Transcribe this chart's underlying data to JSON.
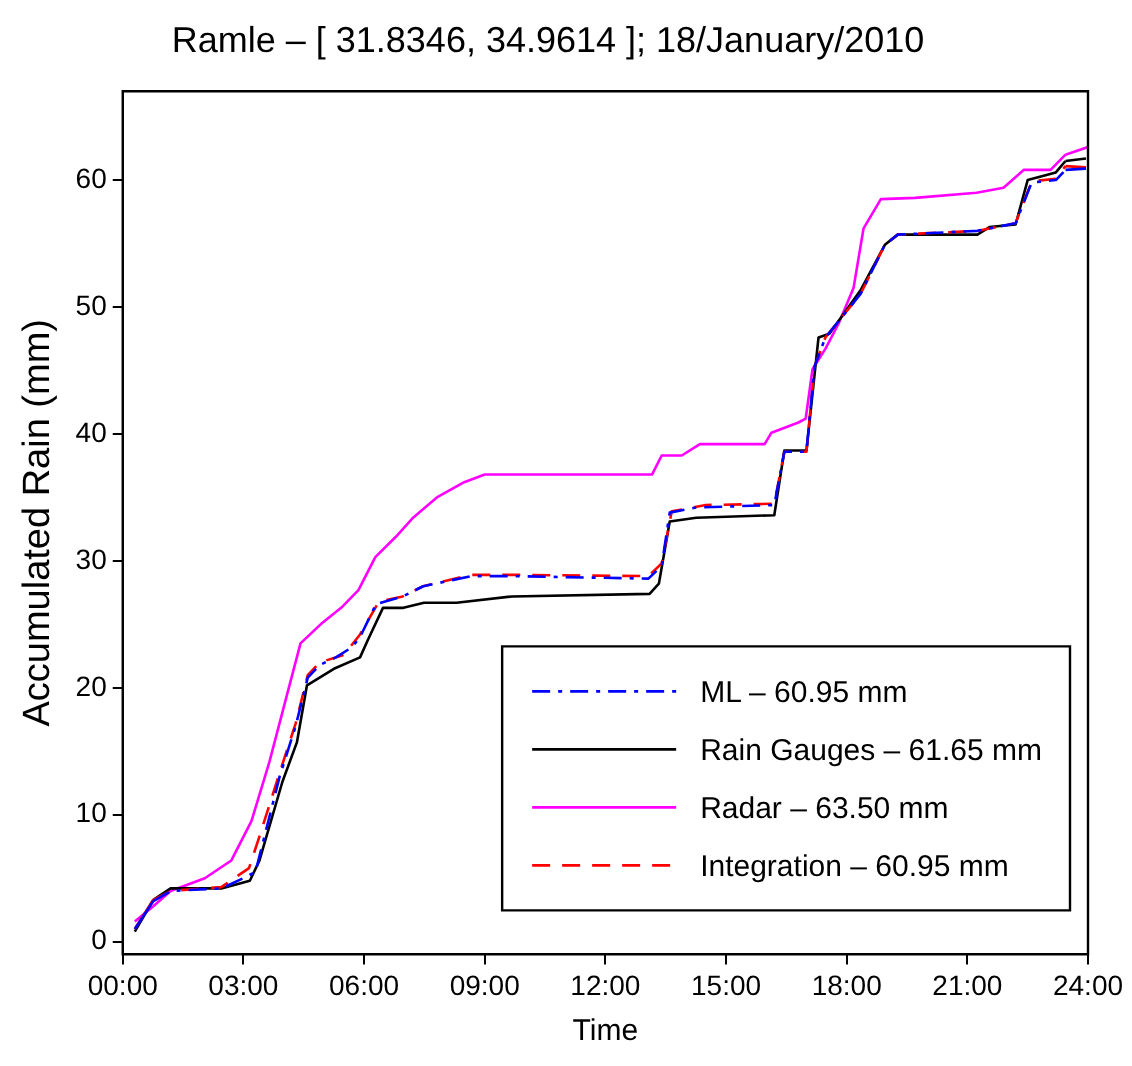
{
  "chart_data": {
    "type": "line",
    "title": "Ramle – [ 31.8346, 34.9614 ]; 18/January/2010",
    "xlabel": "Time",
    "ylabel": "Accumulated Rain (mm)",
    "xlim": [
      0,
      24
    ],
    "xticks": [
      {
        "value": 0,
        "label": "00:00"
      },
      {
        "value": 3,
        "label": "03:00"
      },
      {
        "value": 6,
        "label": "06:00"
      },
      {
        "value": 9,
        "label": "09:00"
      },
      {
        "value": 12,
        "label": "12:00"
      },
      {
        "value": 15,
        "label": "15:00"
      },
      {
        "value": 18,
        "label": "18:00"
      },
      {
        "value": 21,
        "label": "21:00"
      },
      {
        "value": 24,
        "label": "24:00"
      }
    ],
    "ylim": [
      -1,
      67
    ],
    "yticks": [
      0,
      10,
      20,
      30,
      40,
      50,
      60
    ],
    "grid": false,
    "legend": "bottom right",
    "marker": "none",
    "series": [
      {
        "name": "ML – 60.95 mm",
        "color": "#0000ff",
        "line_style": "dashdot",
        "x": [
          0.3,
          0.76,
          1.2,
          2.45,
          3.0,
          3.3,
          3.5,
          3.9,
          4.3,
          4.6,
          4.9,
          5.3,
          5.7,
          5.9,
          6.3,
          6.96,
          7.47,
          8.66,
          9.68,
          13.07,
          13.4,
          13.6,
          14.26,
          16.2,
          16.45,
          17.0,
          17.2,
          17.47,
          18.34,
          18.95,
          19.27,
          21.25,
          22.2,
          22.6,
          23.2,
          23.44,
          23.95
        ],
        "values": [
          1.0,
          3.2,
          4.0,
          4.2,
          5.0,
          5.5,
          8.0,
          13.0,
          17.0,
          20.8,
          21.8,
          22.4,
          23.2,
          24.0,
          26.6,
          27.2,
          28.0,
          28.8,
          28.8,
          28.6,
          29.6,
          33.8,
          34.2,
          34.4,
          38.6,
          38.6,
          45.3,
          47.6,
          51.0,
          54.9,
          55.7,
          56.0,
          56.6,
          59.8,
          60.0,
          60.8,
          60.9
        ]
      },
      {
        "name": "Rain Gauges – 61.65 mm",
        "color": "#000000",
        "line_style": "solid",
        "x": [
          0.3,
          0.76,
          1.19,
          2.45,
          3.16,
          3.4,
          3.97,
          4.33,
          4.58,
          5.25,
          5.9,
          6.1,
          6.47,
          6.98,
          7.49,
          8.3,
          9.68,
          13.1,
          13.33,
          13.6,
          14.26,
          16.2,
          16.45,
          17.0,
          17.3,
          17.57,
          18.34,
          18.95,
          19.27,
          21.25,
          21.55,
          22.2,
          22.5,
          23.2,
          23.44,
          23.95
        ],
        "values": [
          0.8,
          3.3,
          4.2,
          4.2,
          4.8,
          6.4,
          12.6,
          15.7,
          20.2,
          21.5,
          22.4,
          23.8,
          26.3,
          26.3,
          26.7,
          26.7,
          27.2,
          27.4,
          28.2,
          33.1,
          33.4,
          33.6,
          38.7,
          38.7,
          47.6,
          47.9,
          51.3,
          54.9,
          55.7,
          55.7,
          56.3,
          56.5,
          60.0,
          60.6,
          61.5,
          61.7
        ]
      },
      {
        "name": "Radar – 63.50 mm",
        "color": "#ff00ff",
        "line_style": "solid",
        "x": [
          0.3,
          0.76,
          1.19,
          2.04,
          2.7,
          3.2,
          3.65,
          4.08,
          4.42,
          4.92,
          5.43,
          5.86,
          6.28,
          6.79,
          7.22,
          7.81,
          8.49,
          9.0,
          13.16,
          13.4,
          13.9,
          14.35,
          15.96,
          16.13,
          16.8,
          16.98,
          17.15,
          17.47,
          17.8,
          18.17,
          18.42,
          18.85,
          19.7,
          21.23,
          21.9,
          22.4,
          23.07,
          23.44,
          24.0
        ],
        "values": [
          1.6,
          2.8,
          4.0,
          5.0,
          6.4,
          9.5,
          14.2,
          19.4,
          23.5,
          25.0,
          26.3,
          27.7,
          30.3,
          31.9,
          33.4,
          35.0,
          36.2,
          36.8,
          36.8,
          38.3,
          38.3,
          39.2,
          39.2,
          40.1,
          40.9,
          41.2,
          45.1,
          46.7,
          48.7,
          51.5,
          56.2,
          58.5,
          58.6,
          59.0,
          59.4,
          60.8,
          60.8,
          62.0,
          62.6
        ]
      },
      {
        "name": "Integration – 60.95 mm",
        "color": "#ff0000",
        "line_style": "dashed",
        "x": [
          0.3,
          0.76,
          1.2,
          2.45,
          3.14,
          3.4,
          3.9,
          4.3,
          4.6,
          4.9,
          5.5,
          5.9,
          6.37,
          6.96,
          7.47,
          8.66,
          9.68,
          13.07,
          13.4,
          13.65,
          14.5,
          16.2,
          16.45,
          17.0,
          17.2,
          17.47,
          18.34,
          18.95,
          19.27,
          21.25,
          22.2,
          22.6,
          23.2,
          23.44,
          23.95
        ],
        "values": [
          1.0,
          3.3,
          4.0,
          4.3,
          5.8,
          8.3,
          13.3,
          17.2,
          21.0,
          22.0,
          22.6,
          24.2,
          26.8,
          27.2,
          28.0,
          28.9,
          28.9,
          28.8,
          29.8,
          33.9,
          34.4,
          34.5,
          38.6,
          38.6,
          45.3,
          47.6,
          51.0,
          54.9,
          55.7,
          56.0,
          56.6,
          59.9,
          60.1,
          61.1,
          61.0
        ]
      }
    ]
  }
}
